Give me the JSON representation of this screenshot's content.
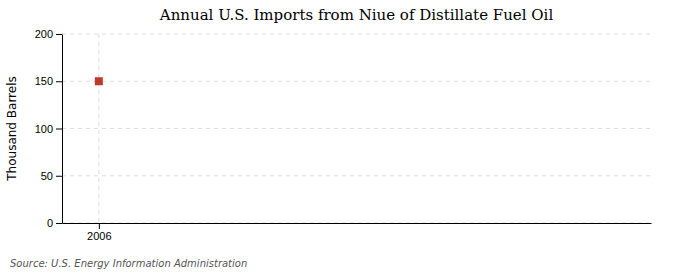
{
  "chart_data": {
    "type": "scatter",
    "title": "Annual U.S. Imports from Niue of Distillate Fuel Oil",
    "ylabel": "Thousand Barrels",
    "annotation": "Source: U.S. Energy Information Administration",
    "x": [
      2006
    ],
    "values": [
      150
    ],
    "color": "#c0392b",
    "marker": "square",
    "xlim": [
      2005.5,
      2013.5
    ],
    "ylim": [
      0,
      200
    ],
    "xticks": [
      2006
    ],
    "yticks": [
      0,
      50,
      100,
      150,
      200
    ],
    "grid": true
  }
}
